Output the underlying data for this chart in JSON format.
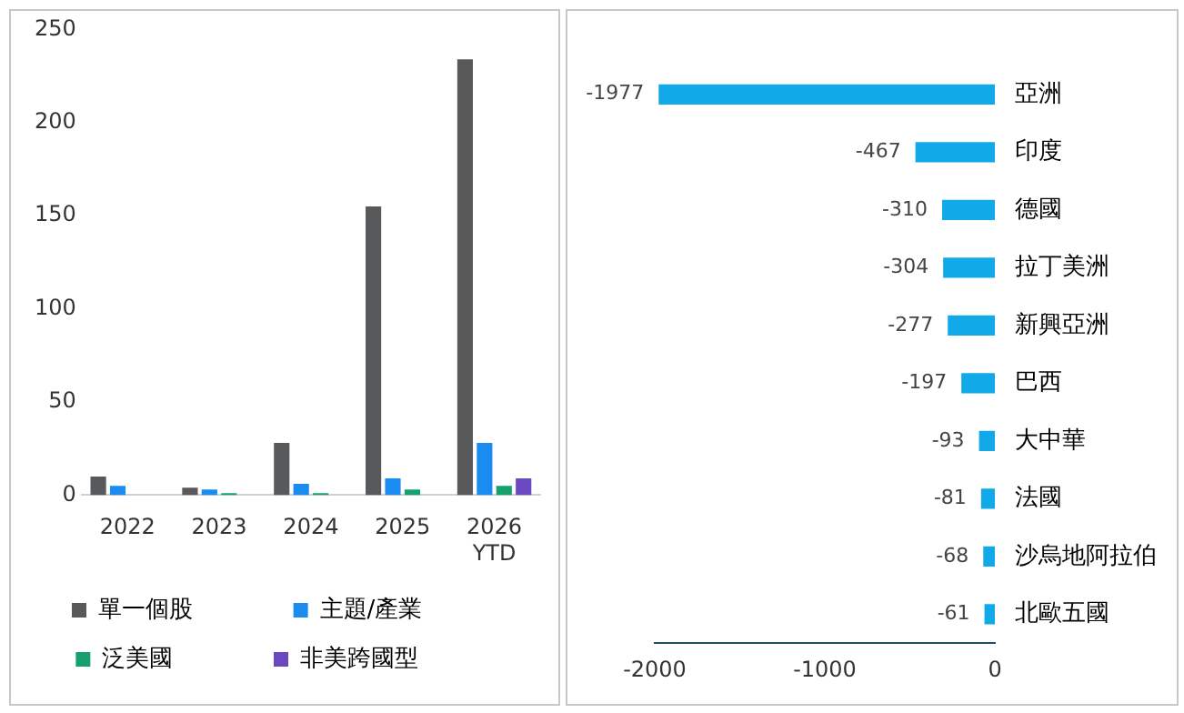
{
  "chart_data": [
    {
      "type": "bar",
      "categories": [
        "2022",
        "2023",
        "2024",
        "2025",
        "2026 YTD"
      ],
      "series": [
        {
          "name": "單一個股",
          "color": "#58595b",
          "values": [
            10,
            4,
            28,
            155,
            234
          ]
        },
        {
          "name": "主題/產業",
          "color": "#1a8cf0",
          "values": [
            5,
            3,
            6,
            9,
            28
          ]
        },
        {
          "name": "泛美國",
          "color": "#16a06e",
          "values": [
            null,
            1,
            1,
            3,
            5
          ]
        },
        {
          "name": "非美跨國型",
          "color": "#6a48c0",
          "values": [
            null,
            null,
            null,
            null,
            9
          ]
        }
      ],
      "ylim": [
        0,
        250
      ],
      "yticks": [
        0,
        50,
        100,
        150,
        200,
        250
      ],
      "grid": false,
      "legend": "bottom"
    },
    {
      "type": "bar",
      "orientation": "horizontal",
      "categories": [
        "亞洲",
        "印度",
        "德國",
        "拉丁美洲",
        "新興亞洲",
        "巴西",
        "大中華",
        "法國",
        "沙烏地阿拉伯",
        "北歐五國"
      ],
      "values": [
        -1977,
        -467,
        -310,
        -304,
        -277,
        -197,
        -93,
        -81,
        -68,
        -61
      ],
      "color": "#12a9e8",
      "xlim": [
        -2000,
        0
      ],
      "xticks": [
        -2000,
        -1000,
        0
      ],
      "grid": false,
      "data_labels": true
    }
  ]
}
